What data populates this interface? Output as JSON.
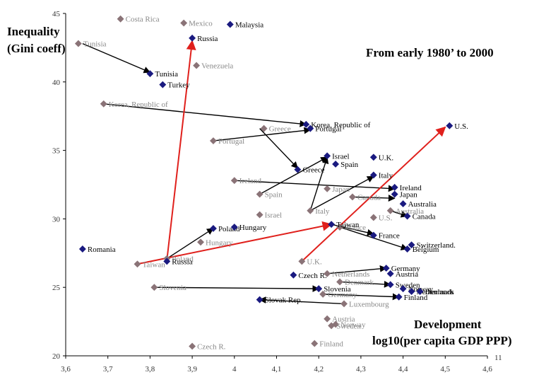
{
  "chart_data": {
    "type": "scatter",
    "ylabel_lines": [
      "Inequality",
      "(Gini coeff)"
    ],
    "subtitle": "From early 1980’ to  2000",
    "xlabel_lines": [
      "Development",
      "log10(per capita GDP PPP)"
    ],
    "xlim": [
      3.6,
      4.6
    ],
    "ylim": [
      20,
      45
    ],
    "x_ticks": [
      "3,6",
      "3,7",
      "3,8",
      "3,9",
      "4",
      "4,1",
      "4,2",
      "4,3",
      "4,4",
      "4,5",
      "4,6"
    ],
    "y_ticks": [
      "20",
      "25",
      "30",
      "35",
      "40",
      "45"
    ],
    "extra_tick_label": "11",
    "colors": {
      "early": "#8a7377",
      "late": "#1a1a80",
      "arrow": "#000000",
      "red_arrow": "#e0201c"
    },
    "series": [
      {
        "name": "early",
        "points": [
          {
            "label": "Costa Rica",
            "x": 3.73,
            "y": 44.6
          },
          {
            "label": "Mexico",
            "x": 3.88,
            "y": 44.3
          },
          {
            "label": "Tunisia",
            "x": 3.63,
            "y": 42.8
          },
          {
            "label": "Venezuela",
            "x": 3.91,
            "y": 41.2
          },
          {
            "label": "Korea, Republic of",
            "x": 3.69,
            "y": 38.4
          },
          {
            "label": "Greece",
            "x": 4.07,
            "y": 36.6
          },
          {
            "label": "Portugal",
            "x": 3.95,
            "y": 35.7
          },
          {
            "label": "Ireland",
            "x": 4.0,
            "y": 32.8
          },
          {
            "label": "Spain",
            "x": 4.06,
            "y": 31.8
          },
          {
            "label": "Japan",
            "x": 4.22,
            "y": 32.2
          },
          {
            "label": "Canada",
            "x": 4.28,
            "y": 31.6
          },
          {
            "label": "Australia",
            "x": 4.37,
            "y": 30.6
          },
          {
            "label": "Italy",
            "x": 4.18,
            "y": 30.6
          },
          {
            "label": "Israel",
            "x": 4.06,
            "y": 30.3
          },
          {
            "label": "U.S.",
            "x": 4.33,
            "y": 30.1
          },
          {
            "label": "France",
            "x": 4.25,
            "y": 29.4
          },
          {
            "label": "Hungary",
            "x": 3.92,
            "y": 28.3
          },
          {
            "label": "Poland",
            "x": 3.84,
            "y": 27.1
          },
          {
            "label": "Taiwan",
            "x": 3.77,
            "y": 26.7
          },
          {
            "label": "U.K.",
            "x": 4.16,
            "y": 26.9
          },
          {
            "label": "Netherlands",
            "x": 4.22,
            "y": 26.0
          },
          {
            "label": "Denmark",
            "x": 4.25,
            "y": 25.4
          },
          {
            "label": "Slovenia",
            "x": 3.81,
            "y": 25.0
          },
          {
            "label": "Germany",
            "x": 4.21,
            "y": 24.5
          },
          {
            "label": "Luxembourg",
            "x": 4.26,
            "y": 23.8
          },
          {
            "label": "Austria",
            "x": 4.22,
            "y": 22.7
          },
          {
            "label": "Norway",
            "x": 4.24,
            "y": 22.3
          },
          {
            "label": "Sweden",
            "x": 4.23,
            "y": 22.2
          },
          {
            "label": "Finland",
            "x": 4.19,
            "y": 20.9
          },
          {
            "label": "Czech R.",
            "x": 3.9,
            "y": 20.7
          }
        ]
      },
      {
        "name": "late",
        "points": [
          {
            "label": "Malaysia",
            "x": 3.99,
            "y": 44.2
          },
          {
            "label": "Russia",
            "x": 3.9,
            "y": 43.2
          },
          {
            "label": "Tunisia",
            "x": 3.8,
            "y": 40.6
          },
          {
            "label": "Turkey",
            "x": 3.83,
            "y": 39.8
          },
          {
            "label": "Korea, Republic of",
            "x": 4.17,
            "y": 36.9
          },
          {
            "label": "Portugal",
            "x": 4.18,
            "y": 36.6
          },
          {
            "label": "U.S.",
            "x": 4.51,
            "y": 36.8
          },
          {
            "label": "Israel",
            "x": 4.22,
            "y": 34.6
          },
          {
            "label": "Spain",
            "x": 4.24,
            "y": 34.0
          },
          {
            "label": "U.K.",
            "x": 4.33,
            "y": 34.5
          },
          {
            "label": "Greece",
            "x": 4.15,
            "y": 33.6
          },
          {
            "label": "Italy",
            "x": 4.33,
            "y": 33.2
          },
          {
            "label": "Ireland",
            "x": 4.38,
            "y": 32.3
          },
          {
            "label": "Japan",
            "x": 4.38,
            "y": 31.8
          },
          {
            "label": "Australia",
            "x": 4.4,
            "y": 31.1
          },
          {
            "label": "Canada",
            "x": 4.41,
            "y": 30.2
          },
          {
            "label": "Taiwan",
            "x": 4.23,
            "y": 29.6
          },
          {
            "label": "Poland",
            "x": 3.95,
            "y": 29.3
          },
          {
            "label": "Hungary",
            "x": 4.0,
            "y": 29.4
          },
          {
            "label": "France",
            "x": 4.33,
            "y": 28.8
          },
          {
            "label": "Romania",
            "x": 3.64,
            "y": 27.8
          },
          {
            "label": "Belgium",
            "x": 4.41,
            "y": 27.8
          },
          {
            "label": "Switzerland.",
            "x": 4.42,
            "y": 28.1
          },
          {
            "label": "Russia",
            "x": 3.84,
            "y": 26.9
          },
          {
            "label": "Germany",
            "x": 4.36,
            "y": 26.4
          },
          {
            "label": "Austria",
            "x": 4.37,
            "y": 26.0
          },
          {
            "label": "Czech R.",
            "x": 4.14,
            "y": 25.9
          },
          {
            "label": "Sweden",
            "x": 4.37,
            "y": 25.2
          },
          {
            "label": "Slovenia",
            "x": 4.2,
            "y": 24.9
          },
          {
            "label": "Norway",
            "x": 4.4,
            "y": 24.9
          },
          {
            "label": "Netherlands",
            "x": 4.42,
            "y": 24.7
          },
          {
            "label": "Denmark",
            "x": 4.44,
            "y": 24.7
          },
          {
            "label": "Finland",
            "x": 4.39,
            "y": 24.3
          },
          {
            "label": "Slovak Rep.",
            "x": 4.06,
            "y": 24.1
          }
        ]
      }
    ],
    "arrows": [
      {
        "from": [
          3.64,
          42.8
        ],
        "to": [
          3.8,
          40.7
        ],
        "color": "arrow"
      },
      {
        "from": [
          3.69,
          38.4
        ],
        "to": [
          4.17,
          36.9
        ],
        "color": "arrow"
      },
      {
        "from": [
          4.06,
          36.6
        ],
        "to": [
          4.15,
          33.7
        ],
        "color": "arrow"
      },
      {
        "from": [
          3.95,
          35.7
        ],
        "to": [
          4.18,
          36.5
        ],
        "color": "arrow"
      },
      {
        "from": [
          4.0,
          32.8
        ],
        "to": [
          4.38,
          32.2
        ],
        "color": "arrow"
      },
      {
        "from": [
          4.06,
          31.8
        ],
        "to": [
          4.22,
          34.5
        ],
        "color": "arrow"
      },
      {
        "from": [
          4.18,
          30.6
        ],
        "to": [
          4.22,
          34.5
        ],
        "color": "arrow"
      },
      {
        "from": [
          4.23,
          29.6
        ],
        "to": [
          4.33,
          28.9
        ],
        "color": "arrow"
      },
      {
        "from": [
          4.18,
          30.6
        ],
        "to": [
          4.33,
          33.1
        ],
        "color": "arrow"
      },
      {
        "from": [
          4.25,
          29.4
        ],
        "to": [
          4.41,
          27.8
        ],
        "color": "arrow"
      },
      {
        "from": [
          4.28,
          31.6
        ],
        "to": [
          4.38,
          31.5
        ],
        "color": "arrow"
      },
      {
        "from": [
          4.37,
          30.6
        ],
        "to": [
          4.41,
          30.2
        ],
        "color": "arrow"
      },
      {
        "from": [
          3.81,
          25.0
        ],
        "to": [
          4.2,
          24.9
        ],
        "color": "arrow"
      },
      {
        "from": [
          3.84,
          27.1
        ],
        "to": [
          3.95,
          29.3
        ],
        "color": "arrow"
      },
      {
        "from": [
          3.77,
          26.7
        ],
        "to": [
          4.23,
          29.6
        ],
        "color": "red_arrow"
      },
      {
        "from": [
          3.84,
          27.0
        ],
        "to": [
          3.9,
          43.0
        ],
        "color": "red_arrow"
      },
      {
        "from": [
          4.16,
          26.9
        ],
        "to": [
          4.5,
          36.7
        ],
        "color": "red_arrow"
      },
      {
        "from": [
          4.26,
          23.8
        ],
        "to": [
          4.06,
          24.1
        ],
        "color": "arrow"
      },
      {
        "from": [
          4.22,
          26.0
        ],
        "to": [
          4.36,
          26.4
        ],
        "color": "arrow"
      },
      {
        "from": [
          4.25,
          25.4
        ],
        "to": [
          4.37,
          25.2
        ],
        "color": "arrow"
      },
      {
        "from": [
          4.21,
          24.5
        ],
        "to": [
          4.39,
          24.3
        ],
        "color": "arrow"
      }
    ]
  }
}
